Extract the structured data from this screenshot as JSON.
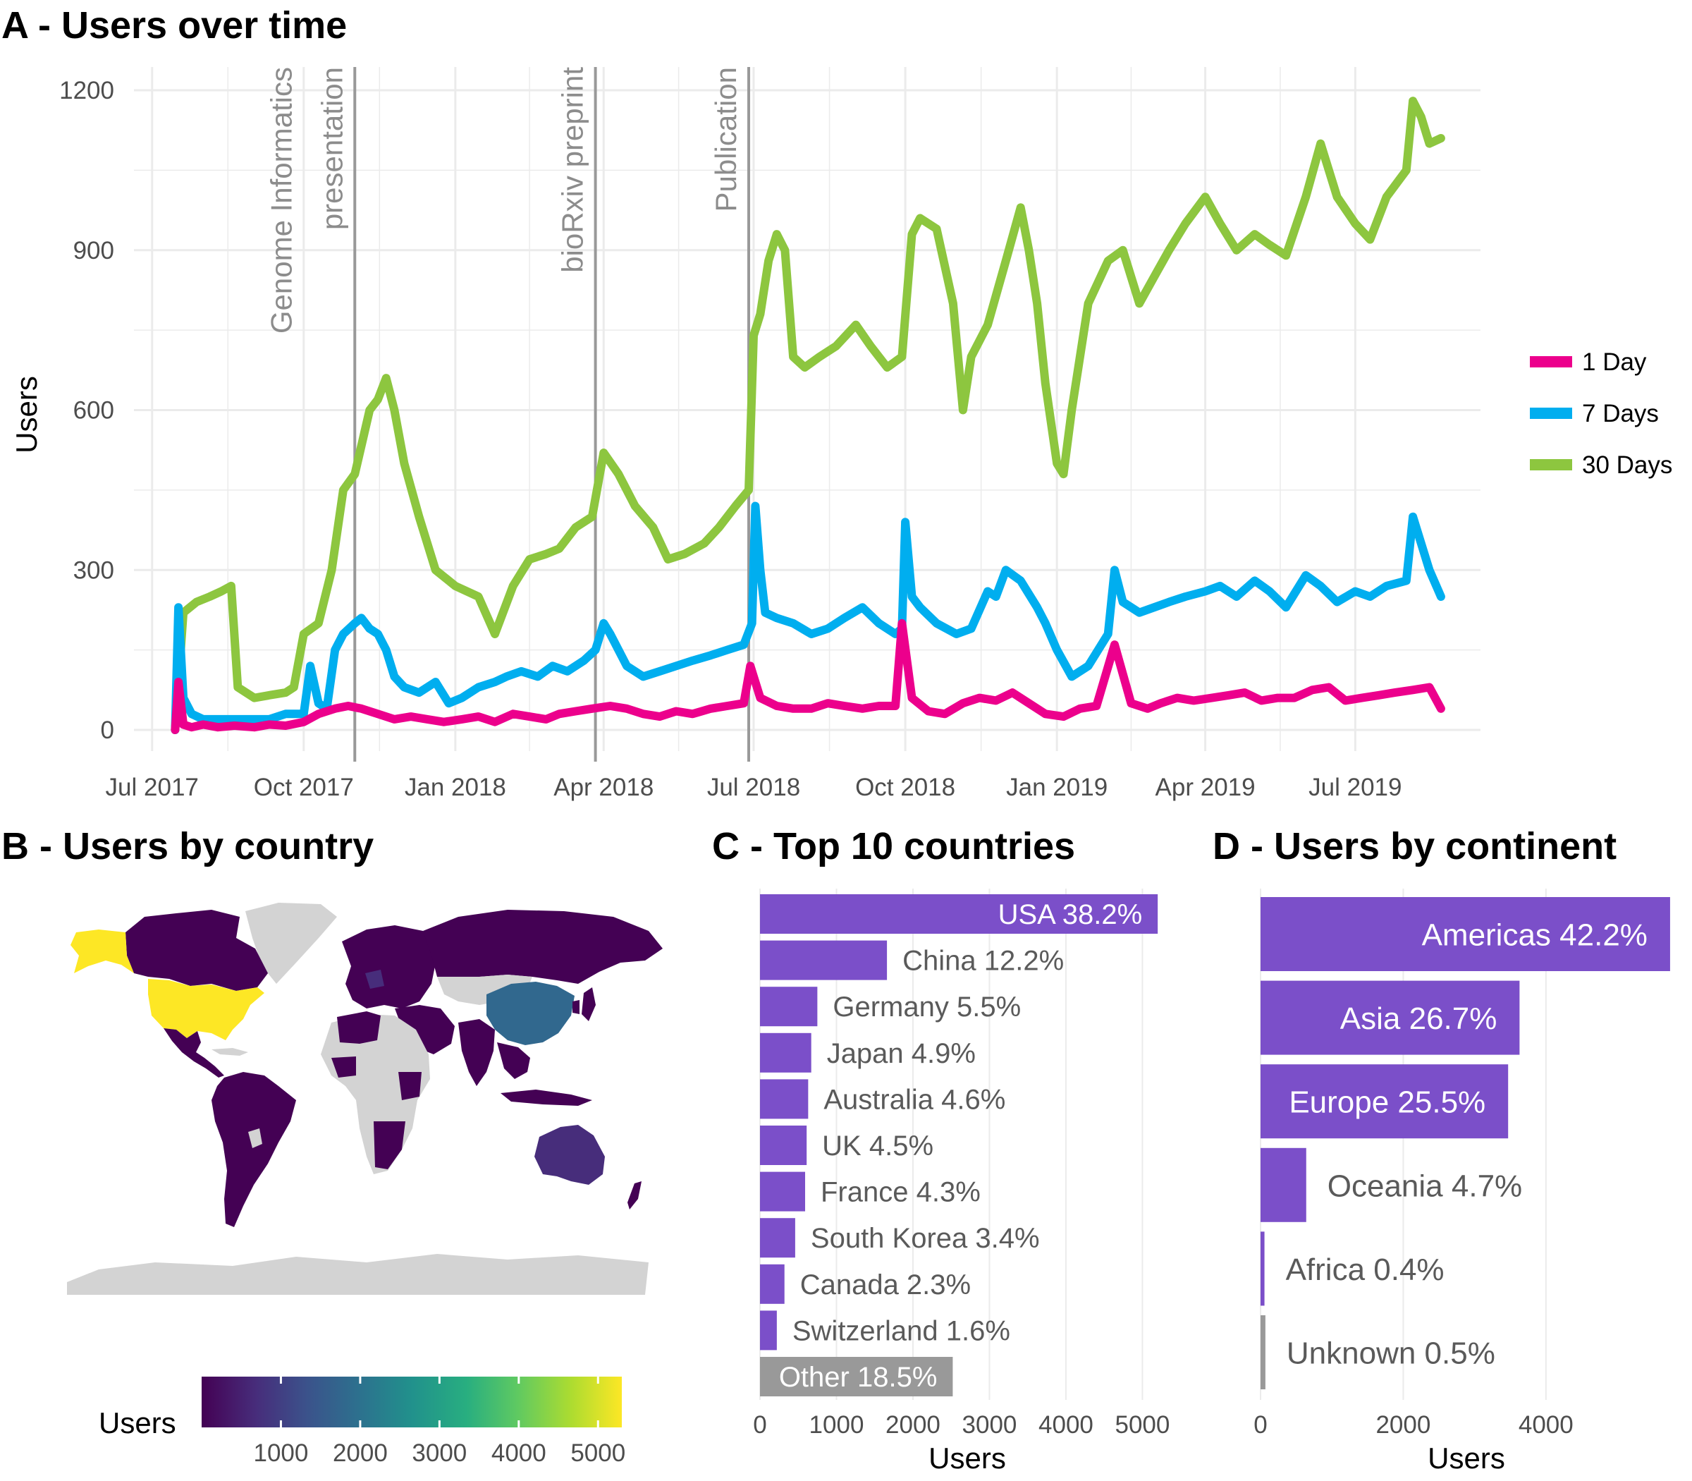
{
  "panels": {
    "a_title": "A - Users over time",
    "b_title": "B - Users by country",
    "c_title": "C - Top 10 countries",
    "d_title": "D - Users by continent"
  },
  "colors": {
    "one_day": "#ec008c",
    "seven_days": "#00aeef",
    "thirty_days": "#8dc63f",
    "bar": "#7b4fc9",
    "other_bar": "#999999",
    "land_nodata": "#d3d3d3",
    "grid": "#ebebeb",
    "event_line": "#999999"
  },
  "chart_data": [
    {
      "type": "line",
      "title": "A - Users over time",
      "ylabel": "Users",
      "xlabel": "",
      "ylim": [
        0,
        1200
      ],
      "y_ticks": [
        "0",
        "300",
        "600",
        "900",
        "1200"
      ],
      "x_ticks": [
        "Jul 2017",
        "Oct 2017",
        "Jan 2018",
        "Apr 2018",
        "Jul 2018",
        "Oct 2018",
        "Jan 2019",
        "Apr 2019",
        "Jul 2019"
      ],
      "x_tick_dates": [
        "2017-07-01",
        "2017-10-01",
        "2018-01-01",
        "2018-04-01",
        "2018-07-01",
        "2018-10-01",
        "2019-01-01",
        "2019-04-01",
        "2019-07-01"
      ],
      "x_range": [
        "2017-06-20",
        "2019-09-15"
      ],
      "grid": true,
      "legend_position": "right",
      "annotations": [
        {
          "date": "2017-11-01",
          "lines": [
            "Genome Informatics",
            "presentation"
          ]
        },
        {
          "date": "2018-03-27",
          "lines": [
            "bioRxiv preprint"
          ]
        },
        {
          "date": "2018-06-28",
          "lines": [
            "Publication"
          ]
        }
      ],
      "series": [
        {
          "name": "1 Day",
          "dates": [
            "2017-07-15",
            "2017-07-17",
            "2017-07-20",
            "2017-07-25",
            "2017-08-01",
            "2017-08-10",
            "2017-08-20",
            "2017-09-01",
            "2017-09-10",
            "2017-09-20",
            "2017-10-01",
            "2017-10-10",
            "2017-10-20",
            "2017-10-28",
            "2017-11-05",
            "2017-11-15",
            "2017-11-25",
            "2017-12-05",
            "2017-12-15",
            "2017-12-25",
            "2018-01-05",
            "2018-01-15",
            "2018-01-25",
            "2018-02-05",
            "2018-02-15",
            "2018-02-25",
            "2018-03-05",
            "2018-03-15",
            "2018-03-25",
            "2018-04-05",
            "2018-04-15",
            "2018-04-25",
            "2018-05-05",
            "2018-05-15",
            "2018-05-25",
            "2018-06-05",
            "2018-06-15",
            "2018-06-25",
            "2018-06-29",
            "2018-07-05",
            "2018-07-15",
            "2018-07-25",
            "2018-08-05",
            "2018-08-15",
            "2018-08-25",
            "2018-09-05",
            "2018-09-15",
            "2018-09-25",
            "2018-09-29",
            "2018-10-05",
            "2018-10-15",
            "2018-10-25",
            "2018-11-05",
            "2018-11-15",
            "2018-11-25",
            "2018-12-05",
            "2018-12-15",
            "2018-12-25",
            "2019-01-05",
            "2019-01-15",
            "2019-01-25",
            "2019-02-05",
            "2019-02-15",
            "2019-02-25",
            "2019-03-05",
            "2019-03-15",
            "2019-03-25",
            "2019-04-05",
            "2019-04-15",
            "2019-04-25",
            "2019-05-05",
            "2019-05-15",
            "2019-05-25",
            "2019-06-05",
            "2019-06-15",
            "2019-06-25",
            "2019-07-05",
            "2019-07-15",
            "2019-07-25",
            "2019-08-05",
            "2019-08-15",
            "2019-08-22"
          ],
          "values": [
            0,
            90,
            10,
            5,
            10,
            5,
            8,
            5,
            10,
            8,
            15,
            30,
            40,
            45,
            40,
            30,
            20,
            25,
            20,
            15,
            20,
            25,
            15,
            30,
            25,
            20,
            30,
            35,
            40,
            45,
            40,
            30,
            25,
            35,
            30,
            40,
            45,
            50,
            120,
            60,
            45,
            40,
            40,
            50,
            45,
            40,
            45,
            45,
            200,
            60,
            35,
            30,
            50,
            60,
            55,
            70,
            50,
            30,
            25,
            40,
            45,
            160,
            50,
            40,
            50,
            60,
            55,
            60,
            65,
            70,
            55,
            60,
            60,
            75,
            80,
            55,
            60,
            65,
            70,
            75,
            80,
            40
          ]
        },
        {
          "name": "7 Days",
          "dates": [
            "2017-07-15",
            "2017-07-17",
            "2017-07-20",
            "2017-07-25",
            "2017-08-01",
            "2017-08-10",
            "2017-08-20",
            "2017-09-01",
            "2017-09-10",
            "2017-09-20",
            "2017-09-25",
            "2017-10-01",
            "2017-10-05",
            "2017-10-10",
            "2017-10-15",
            "2017-10-20",
            "2017-10-25",
            "2017-11-01",
            "2017-11-05",
            "2017-11-10",
            "2017-11-15",
            "2017-11-20",
            "2017-11-25",
            "2017-12-01",
            "2017-12-10",
            "2017-12-20",
            "2017-12-28",
            "2018-01-05",
            "2018-01-15",
            "2018-01-25",
            "2018-02-01",
            "2018-02-10",
            "2018-02-20",
            "2018-03-01",
            "2018-03-10",
            "2018-03-20",
            "2018-03-27",
            "2018-04-01",
            "2018-04-05",
            "2018-04-10",
            "2018-04-15",
            "2018-04-25",
            "2018-05-05",
            "2018-05-15",
            "2018-05-25",
            "2018-06-05",
            "2018-06-15",
            "2018-06-25",
            "2018-06-30",
            "2018-07-02",
            "2018-07-05",
            "2018-07-08",
            "2018-07-15",
            "2018-07-25",
            "2018-08-05",
            "2018-08-15",
            "2018-08-25",
            "2018-09-05",
            "2018-09-15",
            "2018-09-25",
            "2018-09-29",
            "2018-10-01",
            "2018-10-05",
            "2018-10-10",
            "2018-10-20",
            "2018-11-01",
            "2018-11-10",
            "2018-11-20",
            "2018-11-25",
            "2018-12-01",
            "2018-12-10",
            "2018-12-20",
            "2018-12-25",
            "2019-01-01",
            "2019-01-10",
            "2019-01-20",
            "2019-02-01",
            "2019-02-05",
            "2019-02-10",
            "2019-02-20",
            "2019-03-01",
            "2019-03-10",
            "2019-03-20",
            "2019-04-01",
            "2019-04-10",
            "2019-04-20",
            "2019-05-01",
            "2019-05-10",
            "2019-05-20",
            "2019-06-01",
            "2019-06-10",
            "2019-06-20",
            "2019-07-01",
            "2019-07-10",
            "2019-07-20",
            "2019-08-01",
            "2019-08-05",
            "2019-08-10",
            "2019-08-15",
            "2019-08-22"
          ],
          "values": [
            0,
            230,
            60,
            30,
            20,
            20,
            20,
            20,
            20,
            30,
            30,
            30,
            120,
            50,
            40,
            150,
            180,
            200,
            210,
            190,
            180,
            150,
            100,
            80,
            70,
            90,
            50,
            60,
            80,
            90,
            100,
            110,
            100,
            120,
            110,
            130,
            150,
            200,
            180,
            150,
            120,
            100,
            110,
            120,
            130,
            140,
            150,
            160,
            200,
            420,
            300,
            220,
            210,
            200,
            180,
            190,
            210,
            230,
            200,
            180,
            190,
            390,
            250,
            230,
            200,
            180,
            190,
            260,
            250,
            300,
            280,
            230,
            200,
            150,
            100,
            120,
            180,
            300,
            240,
            220,
            230,
            240,
            250,
            260,
            270,
            250,
            280,
            260,
            230,
            290,
            270,
            240,
            260,
            250,
            270,
            280,
            400,
            350,
            300,
            250
          ]
        },
        {
          "name": "30 Days",
          "dates": [
            "2017-07-15",
            "2017-07-20",
            "2017-07-28",
            "2017-08-05",
            "2017-08-12",
            "2017-08-18",
            "2017-08-22",
            "2017-09-01",
            "2017-09-10",
            "2017-09-20",
            "2017-09-25",
            "2017-10-01",
            "2017-10-10",
            "2017-10-18",
            "2017-10-25",
            "2017-11-01",
            "2017-11-10",
            "2017-11-15",
            "2017-11-20",
            "2017-11-25",
            "2017-12-01",
            "2017-12-10",
            "2017-12-20",
            "2018-01-01",
            "2018-01-15",
            "2018-01-25",
            "2018-02-05",
            "2018-02-15",
            "2018-02-25",
            "2018-03-05",
            "2018-03-15",
            "2018-03-25",
            "2018-04-01",
            "2018-04-10",
            "2018-04-20",
            "2018-05-01",
            "2018-05-10",
            "2018-05-20",
            "2018-06-01",
            "2018-06-10",
            "2018-06-20",
            "2018-06-28",
            "2018-07-01",
            "2018-07-05",
            "2018-07-10",
            "2018-07-15",
            "2018-07-20",
            "2018-07-25",
            "2018-08-01",
            "2018-08-10",
            "2018-08-20",
            "2018-09-01",
            "2018-09-10",
            "2018-09-20",
            "2018-09-29",
            "2018-10-05",
            "2018-10-10",
            "2018-10-20",
            "2018-10-30",
            "2018-11-05",
            "2018-11-10",
            "2018-11-20",
            "2018-12-01",
            "2018-12-10",
            "2018-12-15",
            "2018-12-20",
            "2018-12-25",
            "2019-01-01",
            "2019-01-05",
            "2019-01-10",
            "2019-01-20",
            "2019-02-01",
            "2019-02-10",
            "2019-02-20",
            "2019-03-01",
            "2019-03-10",
            "2019-03-20",
            "2019-04-01",
            "2019-04-10",
            "2019-04-20",
            "2019-05-01",
            "2019-05-10",
            "2019-05-20",
            "2019-06-01",
            "2019-06-10",
            "2019-06-20",
            "2019-07-01",
            "2019-07-10",
            "2019-07-20",
            "2019-08-01",
            "2019-08-05",
            "2019-08-10",
            "2019-08-15",
            "2019-08-22"
          ],
          "values": [
            0,
            220,
            240,
            250,
            260,
            270,
            80,
            60,
            65,
            70,
            80,
            180,
            200,
            300,
            450,
            480,
            600,
            620,
            660,
            600,
            500,
            400,
            300,
            270,
            250,
            180,
            270,
            320,
            330,
            340,
            380,
            400,
            520,
            480,
            420,
            380,
            320,
            330,
            350,
            380,
            420,
            450,
            740,
            780,
            880,
            930,
            900,
            700,
            680,
            700,
            720,
            760,
            720,
            680,
            700,
            930,
            960,
            940,
            800,
            600,
            700,
            760,
            880,
            980,
            900,
            800,
            650,
            500,
            480,
            600,
            800,
            880,
            900,
            800,
            850,
            900,
            950,
            1000,
            950,
            900,
            930,
            910,
            890,
            1000,
            1100,
            1000,
            950,
            920,
            1000,
            1050,
            1180,
            1150,
            1100,
            1110
          ]
        }
      ]
    },
    {
      "type": "heatmap",
      "title": "B - Users by country",
      "legend_title": "Users",
      "legend_ticks": [
        "1000",
        "2000",
        "3000",
        "4000",
        "5000"
      ],
      "color_range": [
        0,
        5300
      ]
    },
    {
      "type": "bar",
      "orientation": "horizontal",
      "title": "C - Top 10 countries",
      "xlabel": "Users",
      "xlim": [
        0,
        5300
      ],
      "x_ticks": [
        "0",
        "1000",
        "2000",
        "3000",
        "4000",
        "5000"
      ],
      "categories": [
        "USA",
        "China",
        "Germany",
        "Japan",
        "Australia",
        "UK",
        "France",
        "South Korea",
        "Canada",
        "Switzerland",
        "Other"
      ],
      "labels": [
        "USA 38.2%",
        "China 12.2%",
        "Germany 5.5%",
        "Japan 4.9%",
        "Australia 4.6%",
        "UK 4.5%",
        "France 4.3%",
        "South Korea 3.4%",
        "Canada 2.3%",
        "Switzerland 1.6%",
        "Other 18.5%"
      ],
      "values": [
        5200,
        1660,
        750,
        670,
        630,
        610,
        590,
        460,
        320,
        220,
        2520
      ]
    },
    {
      "type": "bar",
      "orientation": "horizontal",
      "title": "D - Users by continent",
      "xlabel": "Users",
      "xlim": [
        0,
        5800
      ],
      "x_ticks": [
        "0",
        "2000",
        "4000"
      ],
      "categories": [
        "Americas",
        "Asia",
        "Europe",
        "Oceania",
        "Africa",
        "Unknown"
      ],
      "labels": [
        "Americas 42.2%",
        "Asia 26.7%",
        "Europe 25.5%",
        "Oceania 4.7%",
        "Africa 0.4%",
        "Unknown 0.5%"
      ],
      "values": [
        5740,
        3630,
        3470,
        640,
        55,
        68
      ]
    }
  ]
}
